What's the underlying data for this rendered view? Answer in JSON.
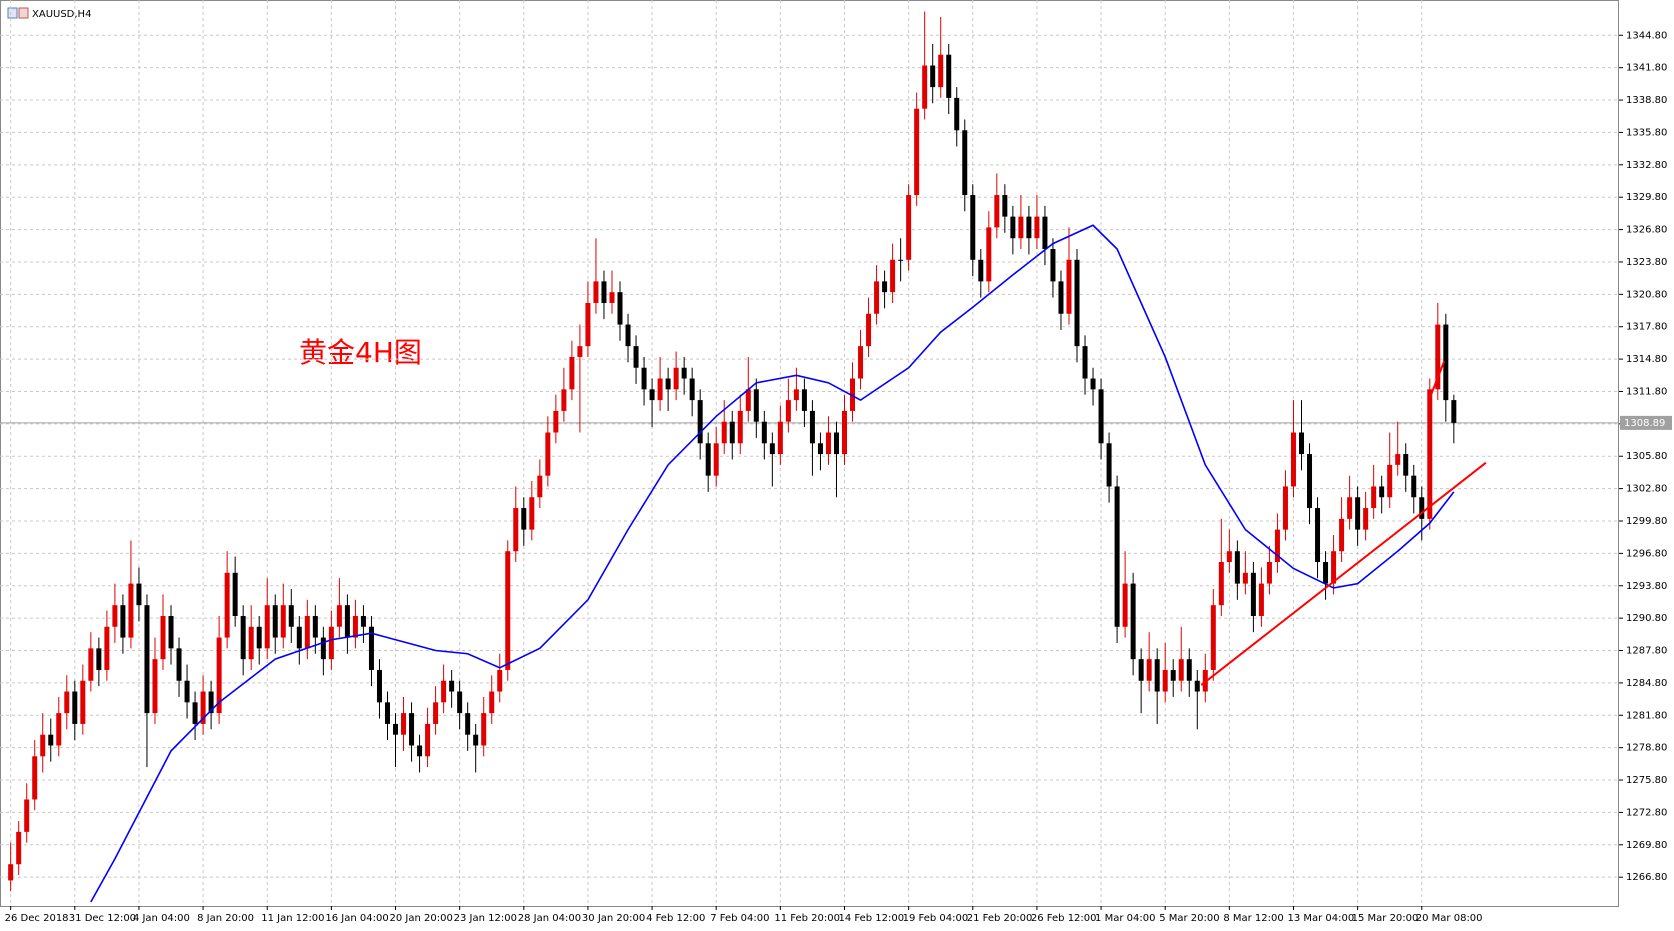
{
  "chart_data": {
    "type": "candlestick",
    "title": "XAUUSD,H4",
    "annotation": "黄金4H图",
    "up_color": "#e00000",
    "down_color": "#000000",
    "grid": true,
    "xlim": [
      -1.33,
      200.6
    ],
    "xticks": [
      {
        "value": 0,
        "label": "26 Dec 2018"
      },
      {
        "value": 8,
        "label": "31 Dec 12:00"
      },
      {
        "value": 16,
        "label": "4 Jan 04:00"
      },
      {
        "value": 24,
        "label": "8 Jan 20:00"
      },
      {
        "value": 32,
        "label": "11 Jan 12:00"
      },
      {
        "value": 40,
        "label": "16 Jan 04:00"
      },
      {
        "value": 48,
        "label": "20 Jan 20:00"
      },
      {
        "value": 56,
        "label": "23 Jan 12:00"
      },
      {
        "value": 64,
        "label": "28 Jan 04:00"
      },
      {
        "value": 72,
        "label": "30 Jan 20:00"
      },
      {
        "value": 80,
        "label": "4 Feb 12:00"
      },
      {
        "value": 88,
        "label": "7 Feb 04:00"
      },
      {
        "value": 96,
        "label": "11 Feb 20:00"
      },
      {
        "value": 104,
        "label": "14 Feb 12:00"
      },
      {
        "value": 112,
        "label": "19 Feb 04:00"
      },
      {
        "value": 120,
        "label": "21 Feb 20:00"
      },
      {
        "value": 128,
        "label": "26 Feb 12:00"
      },
      {
        "value": 136,
        "label": "1 Mar 04:00"
      },
      {
        "value": 144,
        "label": "5 Mar 20:00"
      },
      {
        "value": 152,
        "label": "8 Mar 12:00"
      },
      {
        "value": 160,
        "label": "13 Mar 04:00"
      },
      {
        "value": 168,
        "label": "15 Mar 20:00"
      },
      {
        "value": 176,
        "label": "20 Mar 08:00"
      }
    ],
    "ylim": [
      1264.13,
      1348.07
    ],
    "yticks": [
      {
        "value": 1266.8,
        "label": "1266.80"
      },
      {
        "value": 1269.8,
        "label": "1269.80"
      },
      {
        "value": 1272.8,
        "label": "1272.80"
      },
      {
        "value": 1275.8,
        "label": "1275.80"
      },
      {
        "value": 1278.8,
        "label": "1278.80"
      },
      {
        "value": 1281.8,
        "label": "1281.80"
      },
      {
        "value": 1284.8,
        "label": "1284.80"
      },
      {
        "value": 1287.8,
        "label": "1287.80"
      },
      {
        "value": 1290.8,
        "label": "1290.80"
      },
      {
        "value": 1293.8,
        "label": "1293.80"
      },
      {
        "value": 1296.8,
        "label": "1296.80"
      },
      {
        "value": 1299.8,
        "label": "1299.80"
      },
      {
        "value": 1302.8,
        "label": "1302.80"
      },
      {
        "value": 1305.8,
        "label": "1305.80"
      },
      {
        "value": 1308.8,
        "label": "1308.80"
      },
      {
        "value": 1311.8,
        "label": "1311.80"
      },
      {
        "value": 1314.8,
        "label": "1314.80"
      },
      {
        "value": 1317.8,
        "label": "1317.80"
      },
      {
        "value": 1320.8,
        "label": "1320.80"
      },
      {
        "value": 1323.8,
        "label": "1323.80"
      },
      {
        "value": 1326.8,
        "label": "1326.80"
      },
      {
        "value": 1329.8,
        "label": "1329.80"
      },
      {
        "value": 1332.8,
        "label": "1332.80"
      },
      {
        "value": 1335.8,
        "label": "1335.80"
      },
      {
        "value": 1338.8,
        "label": "1338.80"
      },
      {
        "value": 1341.8,
        "label": "1341.80"
      },
      {
        "value": 1344.8,
        "label": "1344.80"
      }
    ],
    "last_price": {
      "value": 1308.89,
      "label": "1308.89"
    },
    "ohlc": [
      [
        1266.5,
        1270,
        1265.5,
        1268
      ],
      [
        1268,
        1272,
        1267,
        1271
      ],
      [
        1271,
        1275.5,
        1270,
        1274
      ],
      [
        1274,
        1279.5,
        1273,
        1278
      ],
      [
        1278,
        1282,
        1276.5,
        1280
      ],
      [
        1280,
        1281.5,
        1277.5,
        1279
      ],
      [
        1279,
        1283.5,
        1278,
        1282
      ],
      [
        1282,
        1285.5,
        1280.5,
        1284
      ],
      [
        1284,
        1285,
        1279.5,
        1281
      ],
      [
        1281,
        1286.5,
        1280,
        1285
      ],
      [
        1285,
        1289.5,
        1284,
        1288
      ],
      [
        1288,
        1289,
        1284.5,
        1286
      ],
      [
        1286,
        1291.5,
        1285,
        1290
      ],
      [
        1290,
        1294,
        1288.5,
        1292
      ],
      [
        1292,
        1293,
        1287.5,
        1289
      ],
      [
        1289,
        1298,
        1288,
        1294
      ],
      [
        1294,
        1295.5,
        1290.5,
        1292
      ],
      [
        1292,
        1293,
        1277,
        1282
      ],
      [
        1282,
        1289,
        1281,
        1287
      ],
      [
        1287,
        1293,
        1286,
        1291
      ],
      [
        1291,
        1292,
        1286.5,
        1288
      ],
      [
        1288,
        1289,
        1283.5,
        1285
      ],
      [
        1285,
        1286.5,
        1281.5,
        1283
      ],
      [
        1283,
        1284,
        1279.5,
        1281
      ],
      [
        1281,
        1285.5,
        1280,
        1284
      ],
      [
        1284,
        1285,
        1280.5,
        1282
      ],
      [
        1282,
        1291,
        1281,
        1289
      ],
      [
        1289,
        1297,
        1288,
        1295
      ],
      [
        1295,
        1296.5,
        1290,
        1291
      ],
      [
        1291,
        1292,
        1285.5,
        1287
      ],
      [
        1287,
        1292,
        1286,
        1290
      ],
      [
        1290,
        1291,
        1286.5,
        1288
      ],
      [
        1288,
        1294.5,
        1287,
        1292
      ],
      [
        1292,
        1293,
        1287.5,
        1289
      ],
      [
        1289,
        1294,
        1288,
        1292
      ],
      [
        1292,
        1293.5,
        1288.5,
        1290
      ],
      [
        1290,
        1291,
        1286.5,
        1288
      ],
      [
        1288,
        1292.5,
        1287,
        1291
      ],
      [
        1291,
        1292,
        1287.5,
        1289
      ],
      [
        1289,
        1290,
        1285.5,
        1287
      ],
      [
        1287,
        1291.5,
        1286,
        1290
      ],
      [
        1290,
        1294.5,
        1289,
        1292
      ],
      [
        1292,
        1293,
        1287.5,
        1289
      ],
      [
        1289,
        1292.5,
        1288,
        1291
      ],
      [
        1291,
        1292,
        1288.5,
        1290
      ],
      [
        1290,
        1291,
        1284.5,
        1286
      ],
      [
        1286,
        1287,
        1281.5,
        1283
      ],
      [
        1283,
        1284,
        1279.5,
        1281
      ],
      [
        1281,
        1282,
        1277,
        1280
      ],
      [
        1280,
        1283.5,
        1278.5,
        1282
      ],
      [
        1282,
        1283,
        1277.5,
        1279
      ],
      [
        1279,
        1280,
        1276.5,
        1278
      ],
      [
        1278,
        1282.5,
        1277,
        1281
      ],
      [
        1281,
        1284.5,
        1280,
        1283
      ],
      [
        1283,
        1286.5,
        1282,
        1285
      ],
      [
        1285,
        1286,
        1282.5,
        1284
      ],
      [
        1284,
        1285,
        1280.5,
        1282
      ],
      [
        1282,
        1283,
        1278.5,
        1280
      ],
      [
        1280,
        1281,
        1276.5,
        1279
      ],
      [
        1279,
        1283.5,
        1278,
        1282
      ],
      [
        1282,
        1285.5,
        1281,
        1284
      ],
      [
        1284,
        1287.5,
        1283,
        1286
      ],
      [
        1286,
        1298,
        1285,
        1297
      ],
      [
        1297,
        1303,
        1296,
        1301
      ],
      [
        1301,
        1302,
        1297.5,
        1299
      ],
      [
        1299,
        1303.5,
        1298,
        1302
      ],
      [
        1302,
        1305.5,
        1301,
        1304
      ],
      [
        1304,
        1309.5,
        1303,
        1308
      ],
      [
        1308,
        1311.5,
        1307,
        1310
      ],
      [
        1310,
        1314,
        1309,
        1312
      ],
      [
        1312,
        1316.5,
        1311,
        1315
      ],
      [
        1315,
        1318,
        1308,
        1316
      ],
      [
        1316,
        1322,
        1315,
        1320
      ],
      [
        1320,
        1326,
        1319,
        1322
      ],
      [
        1322,
        1323,
        1318.5,
        1320
      ],
      [
        1320,
        1323,
        1319,
        1321
      ],
      [
        1321,
        1322,
        1316.5,
        1318
      ],
      [
        1318,
        1319,
        1314.5,
        1316
      ],
      [
        1316,
        1317,
        1312.5,
        1314
      ],
      [
        1314,
        1315,
        1310.5,
        1312
      ],
      [
        1312,
        1313,
        1308.5,
        1311
      ],
      [
        1311,
        1315,
        1310,
        1313
      ],
      [
        1313,
        1314,
        1310,
        1312
      ],
      [
        1312,
        1315.5,
        1311,
        1314
      ],
      [
        1314,
        1315,
        1311.5,
        1313
      ],
      [
        1313,
        1314,
        1309.5,
        1311
      ],
      [
        1311,
        1312,
        1305.5,
        1307
      ],
      [
        1307,
        1308,
        1302.5,
        1304
      ],
      [
        1304,
        1308.5,
        1303,
        1307
      ],
      [
        1307,
        1311,
        1306,
        1309
      ],
      [
        1309,
        1310,
        1305.5,
        1307
      ],
      [
        1307,
        1311.5,
        1306,
        1310
      ],
      [
        1310,
        1315,
        1309,
        1312
      ],
      [
        1312,
        1313,
        1307.5,
        1309
      ],
      [
        1309,
        1310,
        1305.5,
        1307
      ],
      [
        1307,
        1308,
        1303,
        1306
      ],
      [
        1306,
        1310.5,
        1305,
        1309
      ],
      [
        1309,
        1313,
        1308,
        1311
      ],
      [
        1311,
        1314,
        1310,
        1312
      ],
      [
        1312,
        1313,
        1308.5,
        1310
      ],
      [
        1310,
        1311,
        1304,
        1307
      ],
      [
        1307,
        1308,
        1304.5,
        1306
      ],
      [
        1306,
        1309.5,
        1305,
        1308
      ],
      [
        1308,
        1309,
        1302,
        1306
      ],
      [
        1306,
        1311.5,
        1305,
        1310
      ],
      [
        1310,
        1314.5,
        1309,
        1313
      ],
      [
        1313,
        1317.5,
        1312,
        1316
      ],
      [
        1316,
        1320.5,
        1315,
        1319
      ],
      [
        1319,
        1323.5,
        1318,
        1322
      ],
      [
        1322,
        1323,
        1319.5,
        1321
      ],
      [
        1321,
        1325.5,
        1320,
        1324
      ],
      [
        1324,
        1326,
        1322,
        1324
      ],
      [
        1324,
        1331,
        1323,
        1330
      ],
      [
        1330,
        1339.5,
        1329,
        1338
      ],
      [
        1338,
        1347,
        1337,
        1342
      ],
      [
        1342,
        1344,
        1338.5,
        1340
      ],
      [
        1340,
        1346.5,
        1339,
        1343
      ],
      [
        1343,
        1344,
        1337.5,
        1339
      ],
      [
        1339,
        1340,
        1334.5,
        1336
      ],
      [
        1336,
        1337,
        1328.5,
        1330
      ],
      [
        1330,
        1331,
        1322.5,
        1324
      ],
      [
        1324,
        1325,
        1320.5,
        1322
      ],
      [
        1322,
        1328.5,
        1321,
        1327
      ],
      [
        1327,
        1332,
        1326,
        1330
      ],
      [
        1330,
        1331,
        1326.5,
        1328
      ],
      [
        1328,
        1329,
        1324.5,
        1326
      ],
      [
        1326,
        1330,
        1325,
        1328
      ],
      [
        1328,
        1329,
        1324.5,
        1326
      ],
      [
        1326,
        1330,
        1325,
        1328
      ],
      [
        1328,
        1329,
        1323.5,
        1325
      ],
      [
        1325,
        1326,
        1320.5,
        1322
      ],
      [
        1322,
        1323,
        1317.5,
        1319
      ],
      [
        1319,
        1327,
        1318,
        1324
      ],
      [
        1324,
        1325,
        1314.5,
        1316
      ],
      [
        1316,
        1317,
        1311.5,
        1313
      ],
      [
        1313,
        1314,
        1310.5,
        1312
      ],
      [
        1312,
        1313,
        1305.5,
        1307
      ],
      [
        1307,
        1308,
        1301.5,
        1303
      ],
      [
        1303,
        1304,
        1288.5,
        1290
      ],
      [
        1290,
        1297,
        1289,
        1294
      ],
      [
        1294,
        1295,
        1285.5,
        1287
      ],
      [
        1287,
        1288,
        1282,
        1285
      ],
      [
        1285,
        1289.5,
        1284,
        1287
      ],
      [
        1287,
        1288,
        1281,
        1284
      ],
      [
        1284,
        1288.5,
        1283,
        1286
      ],
      [
        1286,
        1287,
        1283.5,
        1285
      ],
      [
        1285,
        1290,
        1284,
        1287
      ],
      [
        1287,
        1288,
        1283.5,
        1285
      ],
      [
        1285,
        1286,
        1280.5,
        1284
      ],
      [
        1284,
        1287.5,
        1283,
        1286
      ],
      [
        1286,
        1293.5,
        1285,
        1292
      ],
      [
        1292,
        1300,
        1291,
        1296
      ],
      [
        1296,
        1299,
        1295,
        1297
      ],
      [
        1297,
        1298,
        1292.5,
        1294
      ],
      [
        1294,
        1297,
        1293,
        1295
      ],
      [
        1295,
        1296,
        1289.5,
        1291
      ],
      [
        1291,
        1295.5,
        1290,
        1294
      ],
      [
        1294,
        1297.5,
        1293,
        1296
      ],
      [
        1296,
        1300.5,
        1295,
        1299
      ],
      [
        1299,
        1304.5,
        1298,
        1303
      ],
      [
        1303,
        1311,
        1302,
        1308
      ],
      [
        1308,
        1311,
        1304.5,
        1306
      ],
      [
        1306,
        1307,
        1299.5,
        1301
      ],
      [
        1301,
        1302,
        1294.5,
        1296
      ],
      [
        1296,
        1297,
        1292.5,
        1294
      ],
      [
        1294,
        1298.5,
        1293,
        1297
      ],
      [
        1297,
        1302,
        1296,
        1300
      ],
      [
        1300,
        1304,
        1299,
        1302
      ],
      [
        1302,
        1303,
        1297.5,
        1299
      ],
      [
        1299,
        1302.5,
        1298,
        1301
      ],
      [
        1301,
        1305,
        1300,
        1303
      ],
      [
        1303,
        1304,
        1300.5,
        1302
      ],
      [
        1302,
        1308,
        1301,
        1305
      ],
      [
        1305,
        1309,
        1304,
        1306
      ],
      [
        1306,
        1307,
        1302.5,
        1304
      ],
      [
        1304,
        1305,
        1300.5,
        1302
      ],
      [
        1302,
        1303,
        1298,
        1300
      ],
      [
        1300,
        1313,
        1299,
        1312
      ],
      [
        1312,
        1320,
        1311,
        1318
      ],
      [
        1318,
        1319,
        1309,
        1311
      ],
      [
        1311,
        1311.5,
        1307,
        1308.89
      ]
    ],
    "moving_average": {
      "color": "#0000ff",
      "x": [
        10,
        13,
        20,
        26,
        33,
        40,
        45,
        49,
        53,
        57,
        61,
        66,
        72,
        77,
        82,
        88,
        93,
        98,
        102,
        106,
        112,
        116,
        120,
        125,
        130,
        135,
        138,
        144,
        149,
        154,
        160,
        165,
        168,
        173,
        177,
        180
      ],
      "values": [
        1264.5,
        1268.5,
        1278.5,
        1283,
        1287,
        1288.8,
        1289.4,
        1288.6,
        1287.8,
        1287.5,
        1286.2,
        1288,
        1292.5,
        1299,
        1305,
        1309.5,
        1312.6,
        1313.3,
        1312.6,
        1311,
        1314,
        1317.3,
        1319.6,
        1322.6,
        1325.5,
        1327.2,
        1325,
        1315,
        1305,
        1299,
        1295.4,
        1293.6,
        1294,
        1297,
        1299.6,
        1302.5
      ]
    },
    "trendlines": [
      {
        "color": "#ff0000",
        "x": [
          148.5,
          184
        ],
        "values": [
          1284.6,
          1305.2
        ]
      },
      {
        "color": "#ff0000",
        "x": [
          177,
          178.8
        ],
        "values": [
          1311.2,
          1314.6
        ]
      }
    ]
  }
}
